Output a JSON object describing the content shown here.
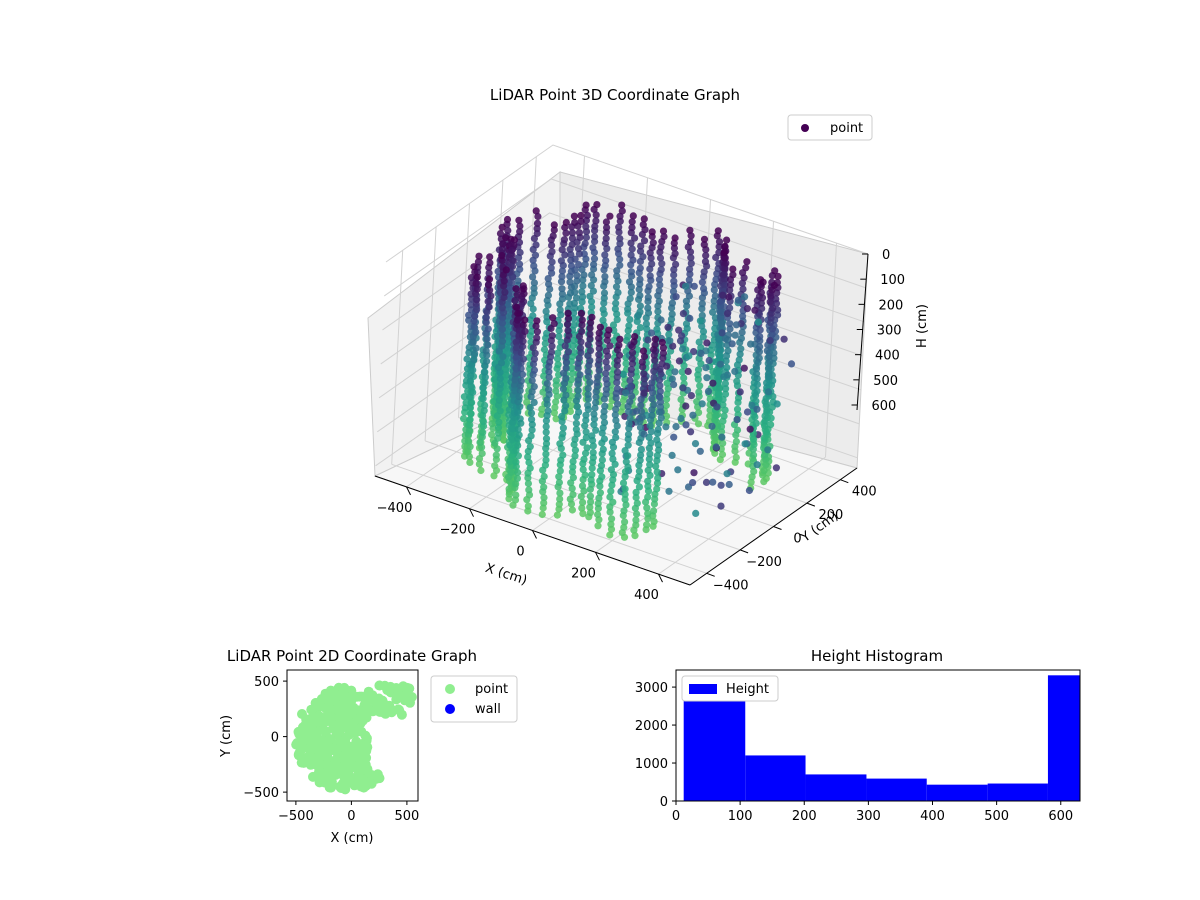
{
  "chart_data": [
    {
      "type": "scatter",
      "projection": "3d",
      "title": "LiDAR Point 3D Coordinate Graph",
      "xlabel": "X (cm)",
      "ylabel": "Y (cm)",
      "zlabel": "H (cm)",
      "xticks": [
        -400,
        -200,
        0,
        200,
        400
      ],
      "yticks": [
        -400,
        -200,
        0,
        200,
        400
      ],
      "zticks": [
        0,
        100,
        200,
        300,
        400,
        500,
        600
      ],
      "zaxis_inverted": true,
      "grid": true,
      "legend": {
        "entries": [
          "point"
        ],
        "placement": "top-right"
      },
      "colormap": [
        "#440154",
        "#3b528b",
        "#21918c",
        "#2ab07f",
        "#5ec962"
      ],
      "series": [
        {
          "name": "point",
          "color": "#440154",
          "description_of_shape": "curved wall ring",
          "x_range": [
            -450,
            450
          ],
          "y_range": [
            -450,
            450
          ],
          "h_range": [
            0,
            630
          ]
        }
      ]
    },
    {
      "type": "scatter",
      "title": "LiDAR Point 2D Coordinate Graph",
      "xlabel": "X (cm)",
      "ylabel": "Y (cm)",
      "xticks": [
        -500,
        0,
        500
      ],
      "yticks": [
        -500,
        0,
        500
      ],
      "xlim": [
        -580,
        600
      ],
      "ylim": [
        -580,
        600
      ],
      "legend": {
        "entries": [
          "point",
          "wall"
        ],
        "placement": "outside-right"
      },
      "series": [
        {
          "name": "point",
          "color": "#90ee90"
        },
        {
          "name": "wall",
          "color": "#0000ff"
        }
      ]
    },
    {
      "type": "bar",
      "subtype": "histogram",
      "title": "Height Histogram",
      "xticks": [
        0,
        100,
        200,
        300,
        400,
        500,
        600
      ],
      "yticks": [
        0,
        1000,
        2000,
        3000
      ],
      "xlim": [
        0,
        630
      ],
      "ylim": [
        0,
        3450
      ],
      "legend": {
        "entries": [
          "Height"
        ],
        "placement": "top-left"
      },
      "series": [
        {
          "name": "Height",
          "color": "#0000ff",
          "bins": [
            {
              "x0": 12,
              "x1": 108,
              "value": 2750
            },
            {
              "x0": 108,
              "x1": 202,
              "value": 1200
            },
            {
              "x0": 202,
              "x1": 297,
              "value": 700
            },
            {
              "x0": 297,
              "x1": 391,
              "value": 590
            },
            {
              "x0": 391,
              "x1": 486,
              "value": 430
            },
            {
              "x0": 486,
              "x1": 580,
              "value": 460
            },
            {
              "x0": 580,
              "x1": 630,
              "value": 3310
            }
          ]
        }
      ]
    }
  ]
}
